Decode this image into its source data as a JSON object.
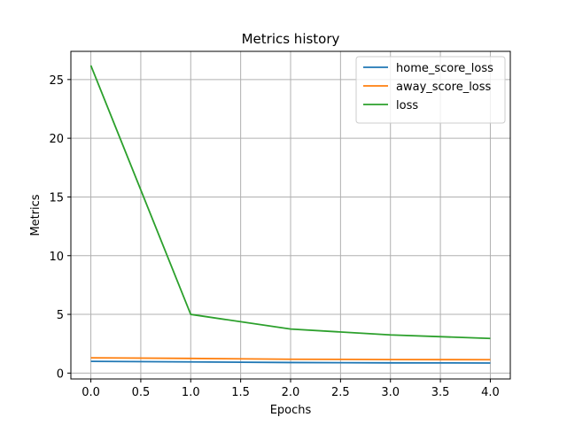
{
  "chart_data": {
    "type": "line",
    "title": "Metrics history",
    "xlabel": "Epochs",
    "ylabel": "Metrics",
    "x": [
      0,
      1,
      2,
      3,
      4
    ],
    "xlim": [
      -0.2,
      4.2
    ],
    "ylim": [
      -0.5,
      27.4
    ],
    "xticks": [
      0.0,
      0.5,
      1.0,
      1.5,
      2.0,
      2.5,
      3.0,
      3.5,
      4.0
    ],
    "xtick_labels": [
      "0.0",
      "0.5",
      "1.0",
      "1.5",
      "2.0",
      "2.5",
      "3.0",
      "3.5",
      "4.0"
    ],
    "yticks": [
      0,
      5,
      10,
      15,
      20,
      25
    ],
    "ytick_labels": [
      "0",
      "5",
      "10",
      "15",
      "20",
      "25"
    ],
    "grid": true,
    "legend_position": "top-right",
    "series": [
      {
        "name": "home_score_loss",
        "color": "#1f77b4",
        "values": [
          1.0,
          0.95,
          0.9,
          0.87,
          0.86
        ]
      },
      {
        "name": "away_score_loss",
        "color": "#ff7f0e",
        "values": [
          1.3,
          1.25,
          1.18,
          1.15,
          1.14
        ]
      },
      {
        "name": "loss",
        "color": "#2ca02c",
        "values": [
          26.2,
          5.0,
          3.75,
          3.25,
          2.95
        ]
      }
    ]
  }
}
